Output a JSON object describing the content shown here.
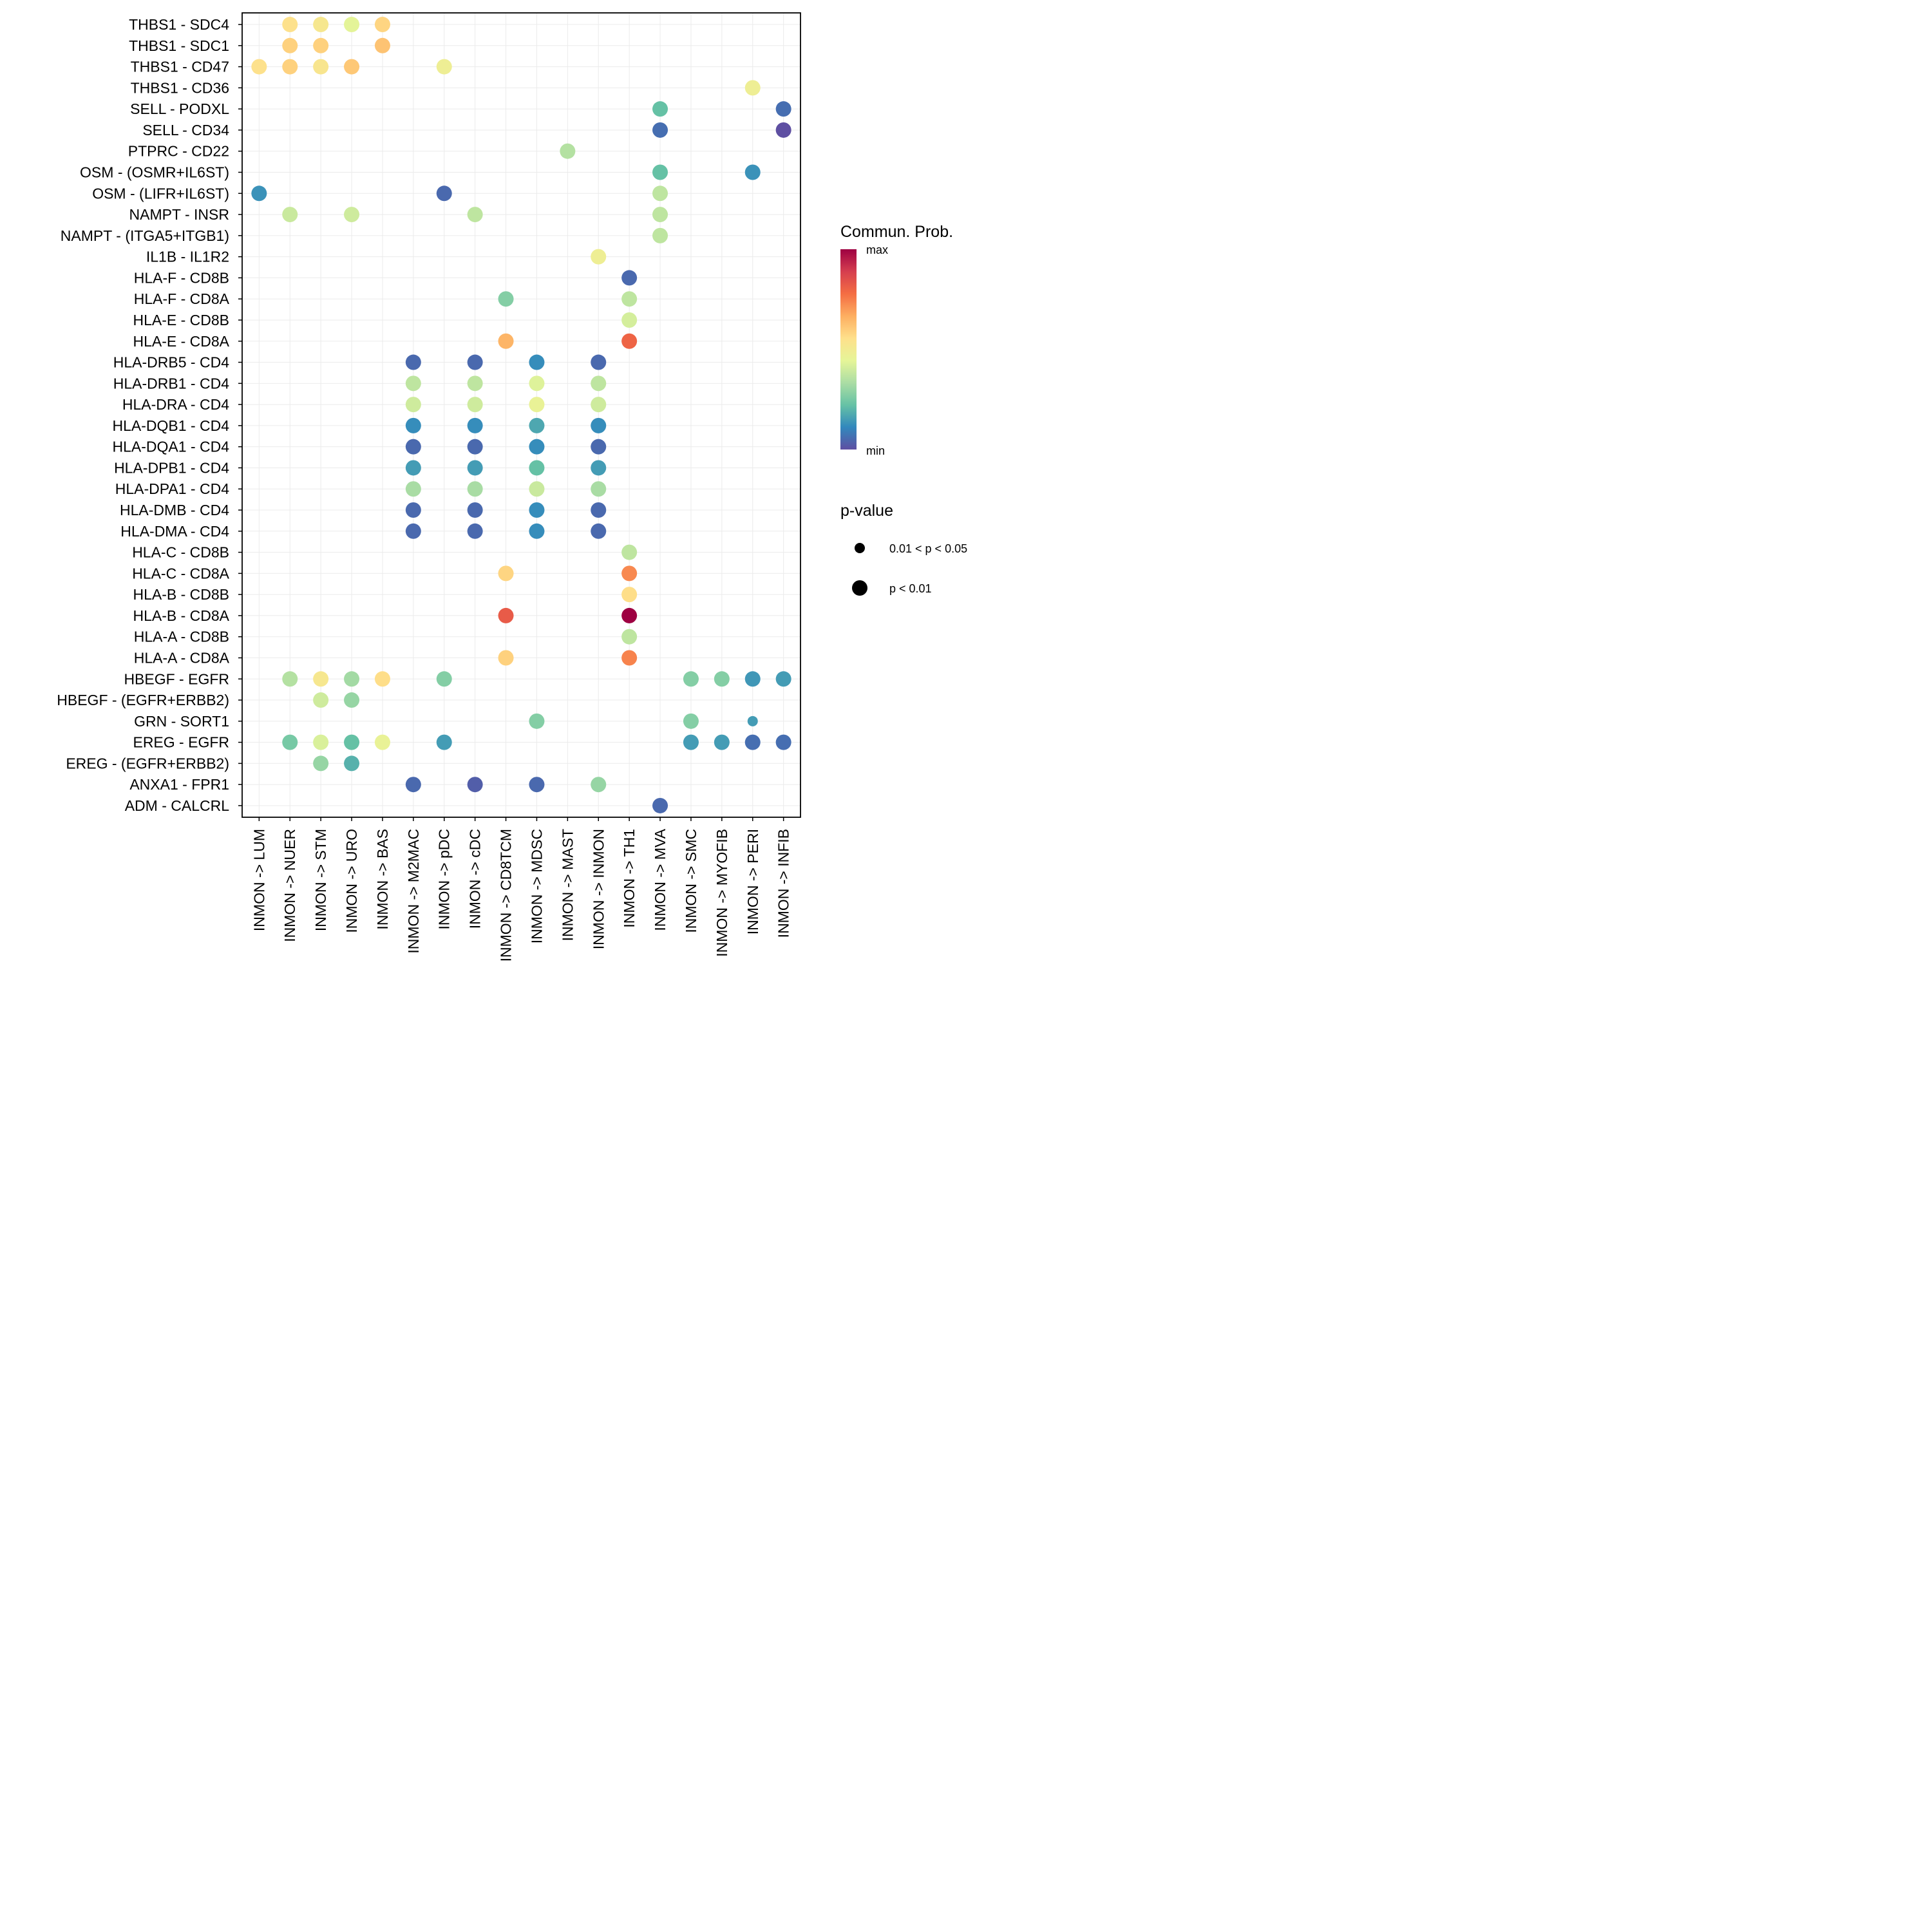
{
  "chart_data": {
    "type": "scatter",
    "subtype": "dot-plot",
    "title": "",
    "xlabel": "",
    "ylabel": "",
    "grid": true,
    "x_categories": [
      "INMON -> LUM",
      "INMON -> NUER",
      "INMON -> STM",
      "INMON -> URO",
      "INMON -> BAS",
      "INMON -> M2MAC",
      "INMON -> pDC",
      "INMON -> cDC",
      "INMON -> CD8TCM",
      "INMON -> MDSC",
      "INMON -> MAST",
      "INMON -> INMON",
      "INMON -> TH1",
      "INMON -> MVA",
      "INMON -> SMC",
      "INMON -> MYOFIB",
      "INMON -> PERI",
      "INMON -> INFIB"
    ],
    "y_categories": [
      "THBS1 - SDC4",
      "THBS1 - SDC1",
      "THBS1 - CD47",
      "THBS1 - CD36",
      "SELL - PODXL",
      "SELL - CD34",
      "PTPRC - CD22",
      "OSM - (OSMR+IL6ST)",
      "OSM - (LIFR+IL6ST)",
      "NAMPT - INSR",
      "NAMPT - (ITGA5+ITGB1)",
      "IL1B - IL1R2",
      "HLA-F - CD8B",
      "HLA-F - CD8A",
      "HLA-E - CD8B",
      "HLA-E - CD8A",
      "HLA-DRB5 - CD4",
      "HLA-DRB1 - CD4",
      "HLA-DRA - CD4",
      "HLA-DQB1 - CD4",
      "HLA-DQA1 - CD4",
      "HLA-DPB1 - CD4",
      "HLA-DPA1 - CD4",
      "HLA-DMB - CD4",
      "HLA-DMA - CD4",
      "HLA-C - CD8B",
      "HLA-C - CD8A",
      "HLA-B - CD8B",
      "HLA-B - CD8A",
      "HLA-A - CD8B",
      "HLA-A - CD8A",
      "HBEGF - EGFR",
      "HBEGF - (EGFR+ERBB2)",
      "GRN - SORT1",
      "EREG - EGFR",
      "EREG - (EGFR+ERBB2)",
      "ANXA1 - FPR1",
      "ADM - CALCRL"
    ],
    "color_scale": {
      "title": "Commun. Prob.",
      "min_label": "min",
      "max_label": "max",
      "palette": [
        "#5E4FA2",
        "#3288BD",
        "#66C2A5",
        "#ABDDA4",
        "#E6F598",
        "#FEE08B",
        "#FDAE61",
        "#F46D43",
        "#D53E4F",
        "#9E0142"
      ]
    },
    "size_legend": {
      "title": "p-value",
      "entries": [
        {
          "label": "0.01 < p < 0.05",
          "key": "mid"
        },
        {
          "label": "p < 0.01",
          "key": "low"
        }
      ]
    },
    "points_note": "prob is relative commun. probability on 0 (min) to 1 (max) scale, estimated from color",
    "points": [
      {
        "x": "INMON -> NUER",
        "y": "THBS1 - SDC4",
        "prob": 0.55,
        "p": "low"
      },
      {
        "x": "INMON -> STM",
        "y": "THBS1 - SDC4",
        "prob": 0.52,
        "p": "low"
      },
      {
        "x": "INMON -> URO",
        "y": "THBS1 - SDC4",
        "prob": 0.44,
        "p": "low"
      },
      {
        "x": "INMON -> BAS",
        "y": "THBS1 - SDC4",
        "prob": 0.58,
        "p": "low"
      },
      {
        "x": "INMON -> NUER",
        "y": "THBS1 - SDC1",
        "prob": 0.59,
        "p": "low"
      },
      {
        "x": "INMON -> STM",
        "y": "THBS1 - SDC1",
        "prob": 0.59,
        "p": "low"
      },
      {
        "x": "INMON -> BAS",
        "y": "THBS1 - SDC1",
        "prob": 0.62,
        "p": "low"
      },
      {
        "x": "INMON -> LUM",
        "y": "THBS1 - CD47",
        "prob": 0.55,
        "p": "low"
      },
      {
        "x": "INMON -> NUER",
        "y": "THBS1 - CD47",
        "prob": 0.59,
        "p": "low"
      },
      {
        "x": "INMON -> STM",
        "y": "THBS1 - CD47",
        "prob": 0.53,
        "p": "low"
      },
      {
        "x": "INMON -> URO",
        "y": "THBS1 - CD47",
        "prob": 0.61,
        "p": "low"
      },
      {
        "x": "INMON -> pDC",
        "y": "THBS1 - CD47",
        "prob": 0.48,
        "p": "low"
      },
      {
        "x": "INMON -> PERI",
        "y": "THBS1 - CD36",
        "prob": 0.48,
        "p": "low"
      },
      {
        "x": "INMON -> MVA",
        "y": "SELL - PODXL",
        "prob": 0.22,
        "p": "low"
      },
      {
        "x": "INMON -> INFIB",
        "y": "SELL - PODXL",
        "prob": 0.06,
        "p": "low"
      },
      {
        "x": "INMON -> MVA",
        "y": "SELL - CD34",
        "prob": 0.06,
        "p": "low"
      },
      {
        "x": "INMON -> INFIB",
        "y": "SELL - CD34",
        "prob": 0.0,
        "p": "low"
      },
      {
        "x": "INMON -> MAST",
        "y": "PTPRC - CD22",
        "prob": 0.35,
        "p": "low"
      },
      {
        "x": "INMON -> MVA",
        "y": "OSM - (OSMR+IL6ST)",
        "prob": 0.22,
        "p": "low"
      },
      {
        "x": "INMON -> PERI",
        "y": "OSM - (OSMR+IL6ST)",
        "prob": 0.13,
        "p": "low"
      },
      {
        "x": "INMON -> LUM",
        "y": "OSM - (LIFR+IL6ST)",
        "prob": 0.13,
        "p": "low"
      },
      {
        "x": "INMON -> pDC",
        "y": "OSM - (LIFR+IL6ST)",
        "prob": 0.05,
        "p": "low"
      },
      {
        "x": "INMON -> MVA",
        "y": "OSM - (LIFR+IL6ST)",
        "prob": 0.37,
        "p": "low"
      },
      {
        "x": "INMON -> NUER",
        "y": "NAMPT - INSR",
        "prob": 0.39,
        "p": "low"
      },
      {
        "x": "INMON -> URO",
        "y": "NAMPT - INSR",
        "prob": 0.4,
        "p": "low"
      },
      {
        "x": "INMON -> cDC",
        "y": "NAMPT - INSR",
        "prob": 0.37,
        "p": "low"
      },
      {
        "x": "INMON -> MVA",
        "y": "NAMPT - INSR",
        "prob": 0.37,
        "p": "low"
      },
      {
        "x": "INMON -> MVA",
        "y": "NAMPT - (ITGA5+ITGB1)",
        "prob": 0.37,
        "p": "low"
      },
      {
        "x": "INMON -> INMON",
        "y": "IL1B - IL1R2",
        "prob": 0.48,
        "p": "low"
      },
      {
        "x": "INMON -> TH1",
        "y": "HLA-F - CD8B",
        "prob": 0.05,
        "p": "low"
      },
      {
        "x": "INMON -> CD8TCM",
        "y": "HLA-F - CD8A",
        "prob": 0.27,
        "p": "low"
      },
      {
        "x": "INMON -> TH1",
        "y": "HLA-F - CD8A",
        "prob": 0.37,
        "p": "low"
      },
      {
        "x": "INMON -> TH1",
        "y": "HLA-E - CD8B",
        "prob": 0.41,
        "p": "low"
      },
      {
        "x": "INMON -> CD8TCM",
        "y": "HLA-E - CD8A",
        "prob": 0.65,
        "p": "low"
      },
      {
        "x": "INMON -> TH1",
        "y": "HLA-E - CD8A",
        "prob": 0.8,
        "p": "low"
      },
      {
        "x": "INMON -> M2MAC",
        "y": "HLA-DRB5 - CD4",
        "prob": 0.05,
        "p": "low"
      },
      {
        "x": "INMON -> cDC",
        "y": "HLA-DRB5 - CD4",
        "prob": 0.05,
        "p": "low"
      },
      {
        "x": "INMON -> MDSC",
        "y": "HLA-DRB5 - CD4",
        "prob": 0.12,
        "p": "low"
      },
      {
        "x": "INMON -> INMON",
        "y": "HLA-DRB5 - CD4",
        "prob": 0.05,
        "p": "low"
      },
      {
        "x": "INMON -> M2MAC",
        "y": "HLA-DRB1 - CD4",
        "prob": 0.37,
        "p": "low"
      },
      {
        "x": "INMON -> cDC",
        "y": "HLA-DRB1 - CD4",
        "prob": 0.37,
        "p": "low"
      },
      {
        "x": "INMON -> MDSC",
        "y": "HLA-DRB1 - CD4",
        "prob": 0.43,
        "p": "low"
      },
      {
        "x": "INMON -> INMON",
        "y": "HLA-DRB1 - CD4",
        "prob": 0.37,
        "p": "low"
      },
      {
        "x": "INMON -> M2MAC",
        "y": "HLA-DRA - CD4",
        "prob": 0.4,
        "p": "low"
      },
      {
        "x": "INMON -> cDC",
        "y": "HLA-DRA - CD4",
        "prob": 0.4,
        "p": "low"
      },
      {
        "x": "INMON -> MDSC",
        "y": "HLA-DRA - CD4",
        "prob": 0.46,
        "p": "low"
      },
      {
        "x": "INMON -> INMON",
        "y": "HLA-DRA - CD4",
        "prob": 0.4,
        "p": "low"
      },
      {
        "x": "INMON -> M2MAC",
        "y": "HLA-DQB1 - CD4",
        "prob": 0.12,
        "p": "low"
      },
      {
        "x": "INMON -> cDC",
        "y": "HLA-DQB1 - CD4",
        "prob": 0.12,
        "p": "low"
      },
      {
        "x": "INMON -> MDSC",
        "y": "HLA-DQB1 - CD4",
        "prob": 0.17,
        "p": "low"
      },
      {
        "x": "INMON -> INMON",
        "y": "HLA-DQB1 - CD4",
        "prob": 0.12,
        "p": "low"
      },
      {
        "x": "INMON -> M2MAC",
        "y": "HLA-DQA1 - CD4",
        "prob": 0.05,
        "p": "low"
      },
      {
        "x": "INMON -> cDC",
        "y": "HLA-DQA1 - CD4",
        "prob": 0.05,
        "p": "low"
      },
      {
        "x": "INMON -> MDSC",
        "y": "HLA-DQA1 - CD4",
        "prob": 0.12,
        "p": "low"
      },
      {
        "x": "INMON -> INMON",
        "y": "HLA-DQA1 - CD4",
        "prob": 0.05,
        "p": "low"
      },
      {
        "x": "INMON -> M2MAC",
        "y": "HLA-DPB1 - CD4",
        "prob": 0.15,
        "p": "low"
      },
      {
        "x": "INMON -> cDC",
        "y": "HLA-DPB1 - CD4",
        "prob": 0.15,
        "p": "low"
      },
      {
        "x": "INMON -> MDSC",
        "y": "HLA-DPB1 - CD4",
        "prob": 0.22,
        "p": "low"
      },
      {
        "x": "INMON -> INMON",
        "y": "HLA-DPB1 - CD4",
        "prob": 0.15,
        "p": "low"
      },
      {
        "x": "INMON -> M2MAC",
        "y": "HLA-DPA1 - CD4",
        "prob": 0.33,
        "p": "low"
      },
      {
        "x": "INMON -> cDC",
        "y": "HLA-DPA1 - CD4",
        "prob": 0.33,
        "p": "low"
      },
      {
        "x": "INMON -> MDSC",
        "y": "HLA-DPA1 - CD4",
        "prob": 0.39,
        "p": "low"
      },
      {
        "x": "INMON -> INMON",
        "y": "HLA-DPA1 - CD4",
        "prob": 0.33,
        "p": "low"
      },
      {
        "x": "INMON -> M2MAC",
        "y": "HLA-DMB - CD4",
        "prob": 0.05,
        "p": "low"
      },
      {
        "x": "INMON -> cDC",
        "y": "HLA-DMB - CD4",
        "prob": 0.05,
        "p": "low"
      },
      {
        "x": "INMON -> MDSC",
        "y": "HLA-DMB - CD4",
        "prob": 0.12,
        "p": "low"
      },
      {
        "x": "INMON -> INMON",
        "y": "HLA-DMB - CD4",
        "prob": 0.05,
        "p": "low"
      },
      {
        "x": "INMON -> M2MAC",
        "y": "HLA-DMA - CD4",
        "prob": 0.05,
        "p": "low"
      },
      {
        "x": "INMON -> cDC",
        "y": "HLA-DMA - CD4",
        "prob": 0.05,
        "p": "low"
      },
      {
        "x": "INMON -> MDSC",
        "y": "HLA-DMA - CD4",
        "prob": 0.12,
        "p": "low"
      },
      {
        "x": "INMON -> INMON",
        "y": "HLA-DMA - CD4",
        "prob": 0.05,
        "p": "low"
      },
      {
        "x": "INMON -> TH1",
        "y": "HLA-C - CD8B",
        "prob": 0.37,
        "p": "low"
      },
      {
        "x": "INMON -> CD8TCM",
        "y": "HLA-C - CD8A",
        "prob": 0.58,
        "p": "low"
      },
      {
        "x": "INMON -> TH1",
        "y": "HLA-C - CD8A",
        "prob": 0.73,
        "p": "low"
      },
      {
        "x": "INMON -> TH1",
        "y": "HLA-B - CD8B",
        "prob": 0.56,
        "p": "low"
      },
      {
        "x": "INMON -> CD8TCM",
        "y": "HLA-B - CD8A",
        "prob": 0.82,
        "p": "low"
      },
      {
        "x": "INMON -> TH1",
        "y": "HLA-B - CD8A",
        "prob": 1.0,
        "p": "low"
      },
      {
        "x": "INMON -> TH1",
        "y": "HLA-A - CD8B",
        "prob": 0.37,
        "p": "low"
      },
      {
        "x": "INMON -> CD8TCM",
        "y": "HLA-A - CD8A",
        "prob": 0.59,
        "p": "low"
      },
      {
        "x": "INMON -> TH1",
        "y": "HLA-A - CD8A",
        "prob": 0.74,
        "p": "low"
      },
      {
        "x": "INMON -> NUER",
        "y": "HBEGF - EGFR",
        "prob": 0.35,
        "p": "low"
      },
      {
        "x": "INMON -> STM",
        "y": "HBEGF - EGFR",
        "prob": 0.52,
        "p": "low"
      },
      {
        "x": "INMON -> URO",
        "y": "HBEGF - EGFR",
        "prob": 0.32,
        "p": "low"
      },
      {
        "x": "INMON -> BAS",
        "y": "HBEGF - EGFR",
        "prob": 0.56,
        "p": "low"
      },
      {
        "x": "INMON -> pDC",
        "y": "HBEGF - EGFR",
        "prob": 0.27,
        "p": "low"
      },
      {
        "x": "INMON -> SMC",
        "y": "HBEGF - EGFR",
        "prob": 0.27,
        "p": "low"
      },
      {
        "x": "INMON -> MYOFIB",
        "y": "HBEGF - EGFR",
        "prob": 0.27,
        "p": "low"
      },
      {
        "x": "INMON -> PERI",
        "y": "HBEGF - EGFR",
        "prob": 0.14,
        "p": "low"
      },
      {
        "x": "INMON -> INFIB",
        "y": "HBEGF - EGFR",
        "prob": 0.15,
        "p": "low"
      },
      {
        "x": "INMON -> STM",
        "y": "HBEGF - (EGFR+ERBB2)",
        "prob": 0.4,
        "p": "low"
      },
      {
        "x": "INMON -> URO",
        "y": "HBEGF - (EGFR+ERBB2)",
        "prob": 0.3,
        "p": "low"
      },
      {
        "x": "INMON -> MDSC",
        "y": "GRN - SORT1",
        "prob": 0.27,
        "p": "low"
      },
      {
        "x": "INMON -> SMC",
        "y": "GRN - SORT1",
        "prob": 0.27,
        "p": "low"
      },
      {
        "x": "INMON -> PERI",
        "y": "GRN - SORT1",
        "prob": 0.15,
        "p": "mid"
      },
      {
        "x": "INMON -> NUER",
        "y": "EREG - EGFR",
        "prob": 0.25,
        "p": "low"
      },
      {
        "x": "INMON -> STM",
        "y": "EREG - EGFR",
        "prob": 0.42,
        "p": "low"
      },
      {
        "x": "INMON -> URO",
        "y": "EREG - EGFR",
        "prob": 0.22,
        "p": "low"
      },
      {
        "x": "INMON -> BAS",
        "y": "EREG - EGFR",
        "prob": 0.46,
        "p": "low"
      },
      {
        "x": "INMON -> pDC",
        "y": "EREG - EGFR",
        "prob": 0.15,
        "p": "low"
      },
      {
        "x": "INMON -> SMC",
        "y": "EREG - EGFR",
        "prob": 0.15,
        "p": "low"
      },
      {
        "x": "INMON -> MYOFIB",
        "y": "EREG - EGFR",
        "prob": 0.15,
        "p": "low"
      },
      {
        "x": "INMON -> PERI",
        "y": "EREG - EGFR",
        "prob": 0.06,
        "p": "low"
      },
      {
        "x": "INMON -> INFIB",
        "y": "EREG - EGFR",
        "prob": 0.06,
        "p": "low"
      },
      {
        "x": "INMON -> STM",
        "y": "EREG - (EGFR+ERBB2)",
        "prob": 0.3,
        "p": "low"
      },
      {
        "x": "INMON -> URO",
        "y": "EREG - (EGFR+ERBB2)",
        "prob": 0.19,
        "p": "low"
      },
      {
        "x": "INMON -> M2MAC",
        "y": "ANXA1 - FPR1",
        "prob": 0.05,
        "p": "low"
      },
      {
        "x": "INMON -> cDC",
        "y": "ANXA1 - FPR1",
        "prob": 0.03,
        "p": "low"
      },
      {
        "x": "INMON -> MDSC",
        "y": "ANXA1 - FPR1",
        "prob": 0.05,
        "p": "low"
      },
      {
        "x": "INMON -> INMON",
        "y": "ANXA1 - FPR1",
        "prob": 0.3,
        "p": "low"
      },
      {
        "x": "INMON -> MVA",
        "y": "ADM - CALCRL",
        "prob": 0.05,
        "p": "low"
      }
    ]
  }
}
